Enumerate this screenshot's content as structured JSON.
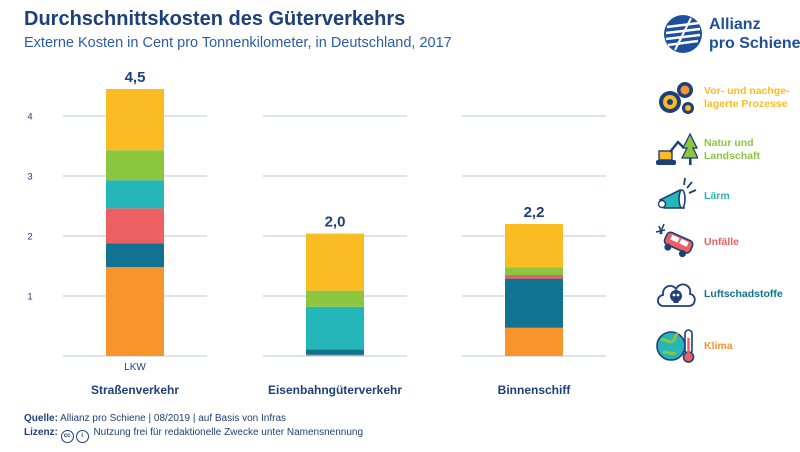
{
  "header": {
    "title": "Durchschnittskosten des Güterverkehrs",
    "subtitle": "Externe Kosten in Cent pro Tonnenkilometer, in Deutschland, 2017"
  },
  "logo": {
    "line1": "Allianz",
    "line2": "pro Schiene"
  },
  "footer": {
    "source_label": "Quelle:",
    "source_text": "Allianz pro Schiene | 08/2019 | auf Basis von Infras",
    "license_label": "Lizenz:",
    "license_icon_cc": "cc",
    "license_icon_by": "i",
    "license_text": "Nutzung frei für redaktionelle Zwecke unter Namensnennung"
  },
  "colors": {
    "prozesse": "#fbbb22",
    "natur": "#8cc63f",
    "laerm": "#25b6b9",
    "unfaelle": "#ec6062",
    "luft": "#107392",
    "klima": "#f7942a",
    "navy": "#1d3f7a",
    "blue": "#2a5caa"
  },
  "legend": [
    {
      "key": "prozesse",
      "label": "Vor- und nachge-lagerte Prozesse",
      "icon": "gears-icon"
    },
    {
      "key": "natur",
      "label": "Natur und Landschaft",
      "icon": "excavator-trees-icon"
    },
    {
      "key": "laerm",
      "label": "Lärm",
      "icon": "megaphone-icon"
    },
    {
      "key": "unfaelle",
      "label": "Unfälle",
      "icon": "crash-car-icon"
    },
    {
      "key": "luft",
      "label": "Luftschadstoffe",
      "icon": "skull-cloud-icon"
    },
    {
      "key": "klima",
      "label": "Klima",
      "icon": "globe-thermometer-icon"
    }
  ],
  "chart_data": {
    "type": "bar",
    "stacked": true,
    "title": "Durchschnittskosten des Güterverkehrs",
    "subtitle": "Externe Kosten in Cent pro Tonnenkilometer, in Deutschland, 2017",
    "ylim": [
      0,
      4.5
    ],
    "yticks": [
      1,
      2,
      3,
      4
    ],
    "grid": true,
    "legend_position": "right",
    "categories": [
      "Straßenverkehr",
      "Eisenbahngüterverkehr",
      "Binnenschiff"
    ],
    "sublabels": [
      "LKW",
      "",
      ""
    ],
    "totals": [
      "4,5",
      "2,0",
      "2,2"
    ],
    "series": [
      {
        "name": "Klima",
        "key": "klima",
        "values": [
          1.48,
          0.02,
          0.47
        ]
      },
      {
        "name": "Luftschadstoffe",
        "key": "luft",
        "values": [
          0.4,
          0.09,
          0.82
        ]
      },
      {
        "name": "Unfälle",
        "key": "unfaelle",
        "values": [
          0.58,
          0.0,
          0.06
        ]
      },
      {
        "name": "Lärm",
        "key": "laerm",
        "values": [
          0.47,
          0.71,
          0.0
        ]
      },
      {
        "name": "Natur und Landschaft",
        "key": "natur",
        "values": [
          0.5,
          0.27,
          0.13
        ]
      },
      {
        "name": "Vor- und nachgelagerte Prozesse",
        "key": "prozesse",
        "values": [
          1.02,
          0.95,
          0.72
        ]
      }
    ]
  }
}
